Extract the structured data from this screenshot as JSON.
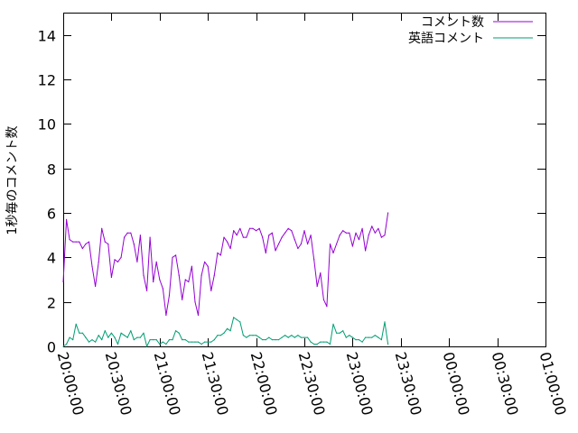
{
  "chart_data": {
    "type": "line",
    "title": "",
    "xlabel": "",
    "ylabel": "1秒毎のコメント数",
    "x_time_range": [
      "20:00:00",
      "01:00:00"
    ],
    "x_tick_step_minutes": 30,
    "x_ticks": [
      "20:00:00",
      "20:30:00",
      "21:00:00",
      "21:30:00",
      "22:00:00",
      "22:30:00",
      "23:00:00",
      "23:30:00",
      "00:00:00",
      "00:30:00",
      "01:00:00"
    ],
    "ylim": [
      0,
      15
    ],
    "y_ticks": [
      "0",
      "2",
      "4",
      "6",
      "8",
      "10",
      "12",
      "14"
    ],
    "grid": false,
    "legend_position": "top-right",
    "sample_interval_minutes": 2,
    "series": [
      {
        "name": "コメント数",
        "color": "#9400d3",
        "values": [
          2.9,
          5.7,
          4.8,
          4.7,
          4.7,
          4.7,
          4.4,
          4.6,
          4.7,
          3.6,
          2.7,
          3.8,
          5.3,
          4.7,
          4.6,
          3.1,
          3.9,
          3.8,
          4.0,
          4.9,
          5.1,
          5.1,
          4.6,
          3.8,
          5.0,
          3.2,
          2.5,
          4.9,
          2.9,
          3.8,
          3.0,
          2.6,
          1.4,
          2.3,
          4.0,
          4.1,
          3.2,
          2.1,
          3.0,
          2.9,
          3.6,
          2.0,
          1.4,
          3.2,
          3.8,
          3.6,
          2.5,
          3.2,
          4.2,
          4.1,
          4.9,
          4.7,
          4.4,
          5.2,
          5.0,
          5.3,
          4.9,
          4.9,
          5.3,
          5.3,
          5.2,
          5.3,
          4.9,
          4.2,
          5.0,
          5.1,
          4.3,
          4.6,
          4.9,
          5.1,
          5.3,
          5.2,
          4.8,
          4.4,
          4.6,
          5.2,
          4.6,
          5.0,
          3.9,
          2.7,
          3.3,
          2.1,
          1.8,
          4.6,
          4.2,
          4.6,
          5.0,
          5.2,
          5.1,
          5.1,
          4.5,
          5.1,
          4.8,
          5.3,
          4.3,
          5.0,
          5.4,
          5.1,
          5.3,
          4.9,
          5.0,
          6.0
        ]
      },
      {
        "name": "英語コメント",
        "color": "#009e73",
        "values": [
          0.0,
          0.1,
          0.4,
          0.3,
          1.0,
          0.6,
          0.6,
          0.4,
          0.2,
          0.3,
          0.2,
          0.5,
          0.3,
          0.7,
          0.4,
          0.6,
          0.4,
          0.1,
          0.6,
          0.5,
          0.4,
          0.7,
          0.3,
          0.4,
          0.4,
          0.6,
          0.0,
          0.3,
          0.3,
          0.3,
          0.1,
          0.2,
          0.1,
          0.3,
          0.3,
          0.7,
          0.6,
          0.3,
          0.3,
          0.2,
          0.2,
          0.2,
          0.2,
          0.1,
          0.2,
          0.2,
          0.2,
          0.3,
          0.5,
          0.5,
          0.6,
          0.8,
          0.7,
          1.3,
          1.2,
          1.1,
          0.5,
          0.4,
          0.5,
          0.5,
          0.5,
          0.4,
          0.3,
          0.3,
          0.4,
          0.3,
          0.3,
          0.3,
          0.4,
          0.5,
          0.4,
          0.5,
          0.4,
          0.5,
          0.4,
          0.4,
          0.4,
          0.2,
          0.1,
          0.1,
          0.2,
          0.2,
          0.2,
          0.1,
          1.0,
          0.6,
          0.6,
          0.7,
          0.4,
          0.5,
          0.4,
          0.3,
          0.3,
          0.2,
          0.4,
          0.4,
          0.4,
          0.5,
          0.4,
          0.3,
          1.1,
          0.1
        ]
      }
    ]
  }
}
